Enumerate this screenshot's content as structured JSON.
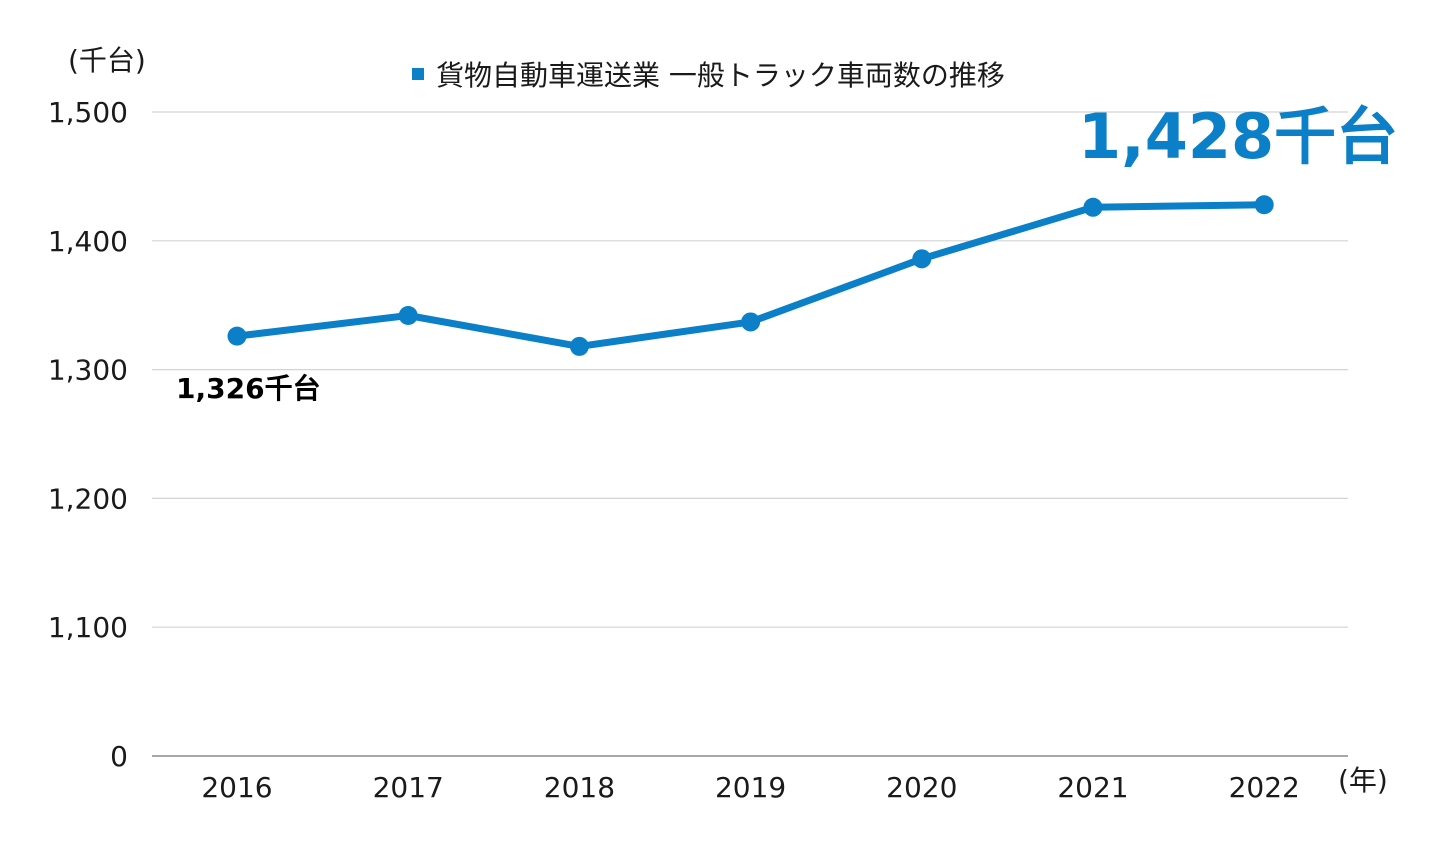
{
  "chart_data": {
    "type": "line",
    "x": [
      "2016",
      "2017",
      "2018",
      "2019",
      "2020",
      "2021",
      "2022"
    ],
    "series": [
      {
        "name": "貨物自動車運送業 一般トラック車両数の推移",
        "values": [
          1326,
          1342,
          1318,
          1337,
          1386,
          1426,
          1428
        ],
        "color": "#0b7fc7"
      }
    ],
    "y_unit_label": "(千台)",
    "x_unit_label": "(年)",
    "yticks": [
      "0",
      "1,100",
      "1,200",
      "1,300",
      "1,400",
      "1,500"
    ],
    "ytick_values": [
      1000,
      1100,
      1200,
      1300,
      1400,
      1500
    ],
    "ylim": [
      1000,
      1500
    ],
    "axis_break": "0 at baseline; scale shown from 1,000 to 1,500",
    "grid": true,
    "legend_position": "top-center",
    "annotations": [
      {
        "text": "1,326千台",
        "target": "2016",
        "style": "bold-black"
      },
      {
        "text": "1,428千台",
        "target": "2022",
        "style": "bold-large-blue"
      }
    ]
  },
  "colors": {
    "series": "#0b7fc7",
    "grid": "#d4d4d4",
    "axis": "#8a8a8a",
    "text": "#1a1a1a"
  }
}
